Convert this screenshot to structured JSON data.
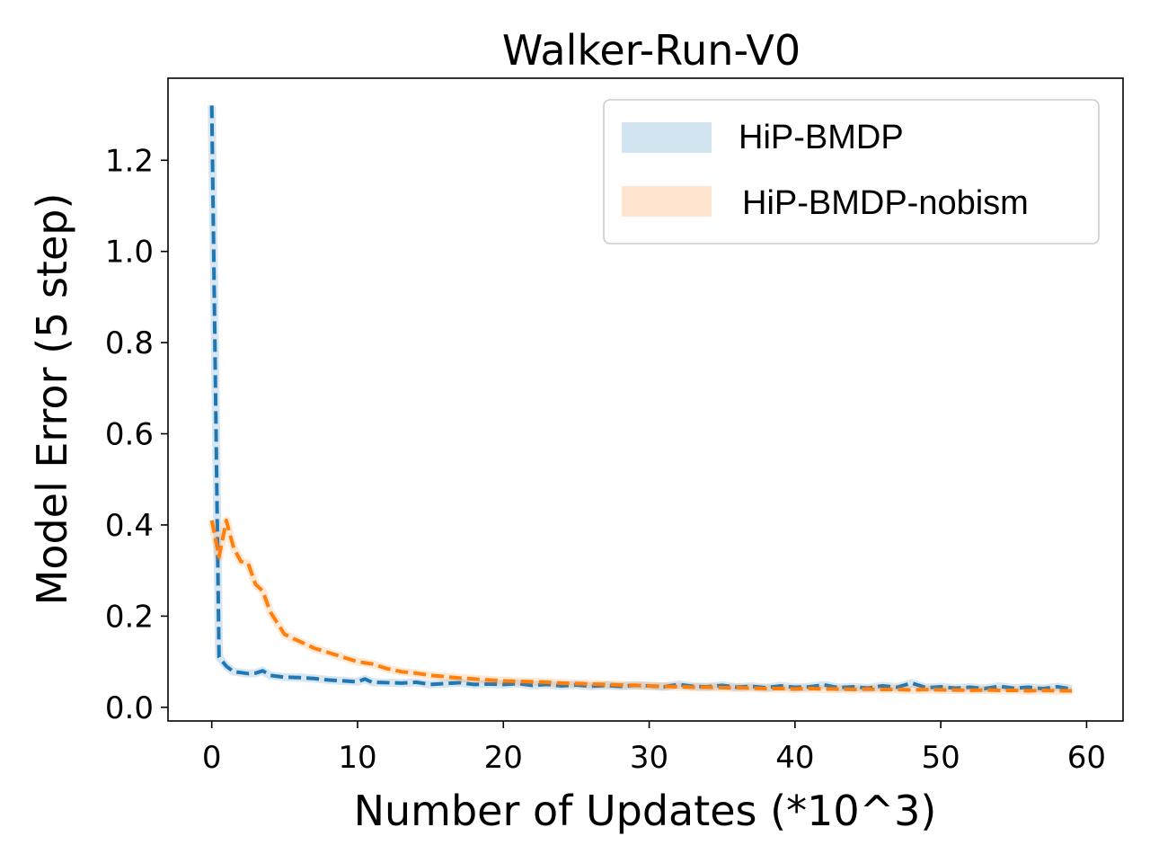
{
  "chart_data": {
    "type": "line",
    "title": "Walker-Run-V0",
    "xlabel": "Number of Updates (*10^3)",
    "ylabel": "Model Error (5 step)",
    "xlim": [
      -3,
      62.5
    ],
    "ylim": [
      -0.03,
      1.38
    ],
    "xticks": [
      0,
      10,
      20,
      30,
      40,
      50,
      60
    ],
    "yticks": [
      0.0,
      0.2,
      0.4,
      0.6,
      0.8,
      1.0,
      1.2
    ],
    "xtick_labels": [
      "0",
      "10",
      "20",
      "30",
      "40",
      "50",
      "60"
    ],
    "ytick_labels": [
      "0.0",
      "0.2",
      "0.4",
      "0.6",
      "0.8",
      "1.0",
      "1.2"
    ],
    "grid": false,
    "legend_position": "top-right",
    "series": [
      {
        "name": "HiP-BMDP",
        "color": "#1f77b4",
        "linestyle": "dashed",
        "x": [
          0,
          0.5,
          1,
          1.5,
          2,
          2.5,
          3,
          3.5,
          4,
          5,
          6,
          7,
          8,
          9,
          10,
          10.5,
          11,
          12,
          13,
          14,
          15,
          16,
          17,
          18,
          19,
          20,
          21,
          22,
          23,
          24,
          25,
          26,
          27,
          28,
          29,
          30,
          31,
          32,
          33,
          34,
          35,
          36,
          37,
          38,
          39,
          40,
          41,
          42,
          43,
          44,
          45,
          46,
          47,
          48,
          49,
          50,
          51,
          52,
          53,
          54,
          55,
          56,
          57,
          58,
          59
        ],
        "y": [
          1.32,
          0.11,
          0.09,
          0.078,
          0.076,
          0.074,
          0.075,
          0.08,
          0.07,
          0.066,
          0.065,
          0.063,
          0.06,
          0.058,
          0.056,
          0.062,
          0.055,
          0.054,
          0.053,
          0.055,
          0.05,
          0.052,
          0.054,
          0.05,
          0.051,
          0.05,
          0.052,
          0.048,
          0.05,
          0.047,
          0.049,
          0.046,
          0.048,
          0.046,
          0.048,
          0.047,
          0.045,
          0.05,
          0.046,
          0.045,
          0.048,
          0.044,
          0.046,
          0.043,
          0.047,
          0.044,
          0.045,
          0.049,
          0.043,
          0.045,
          0.042,
          0.047,
          0.044,
          0.053,
          0.043,
          0.045,
          0.042,
          0.044,
          0.041,
          0.046,
          0.042,
          0.044,
          0.041,
          0.045,
          0.04
        ]
      },
      {
        "name": "HiP-BMDP-nobism",
        "color": "#ff7f0e",
        "linestyle": "dashed",
        "x": [
          0,
          0.5,
          1,
          1.5,
          2,
          2.5,
          3,
          3.5,
          4,
          5,
          6,
          7,
          8,
          9,
          10,
          11,
          12,
          13,
          14,
          15,
          16,
          17,
          18,
          19,
          20,
          21,
          22,
          23,
          24,
          25,
          26,
          27,
          28,
          29,
          30,
          31,
          32,
          33,
          34,
          35,
          36,
          37,
          38,
          39,
          40,
          41,
          42,
          43,
          44,
          45,
          46,
          47,
          48,
          49,
          50,
          51,
          52,
          53,
          54,
          55,
          56,
          57,
          58,
          59
        ],
        "y": [
          0.41,
          0.33,
          0.41,
          0.35,
          0.32,
          0.315,
          0.27,
          0.255,
          0.21,
          0.16,
          0.145,
          0.13,
          0.12,
          0.11,
          0.1,
          0.095,
          0.085,
          0.078,
          0.075,
          0.07,
          0.067,
          0.064,
          0.062,
          0.06,
          0.058,
          0.057,
          0.056,
          0.055,
          0.053,
          0.052,
          0.051,
          0.05,
          0.049,
          0.048,
          0.047,
          0.046,
          0.045,
          0.044,
          0.044,
          0.043,
          0.043,
          0.042,
          0.041,
          0.041,
          0.04,
          0.041,
          0.04,
          0.04,
          0.039,
          0.04,
          0.039,
          0.039,
          0.038,
          0.039,
          0.038,
          0.038,
          0.037,
          0.038,
          0.037,
          0.037,
          0.036,
          0.037,
          0.036,
          0.036
        ]
      }
    ]
  }
}
